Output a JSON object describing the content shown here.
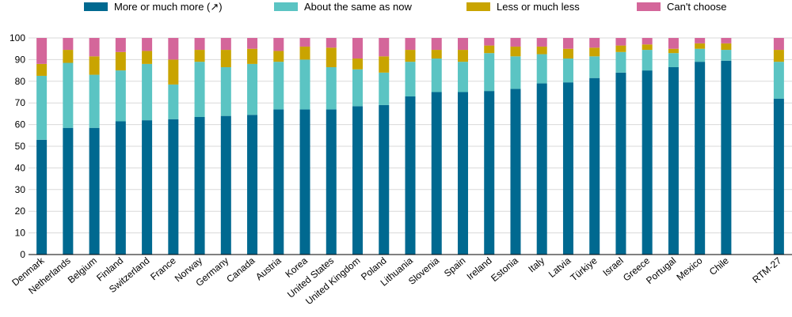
{
  "chart_data": {
    "type": "bar",
    "stacked": true,
    "title": "",
    "xlabel": "",
    "ylabel": "",
    "ylim": [
      0,
      100
    ],
    "yticks": [
      0,
      10,
      20,
      30,
      40,
      50,
      60,
      70,
      80,
      90,
      100
    ],
    "grid": true,
    "legend_position": "top",
    "categories": [
      "Denmark",
      "Netherlands",
      "Belgium",
      "Finland",
      "Switzerland",
      "France",
      "Norway",
      "Germany",
      "Canada",
      "Austria",
      "Korea",
      "United States",
      "United Kingdom",
      "Poland",
      "Lithuania",
      "Slovenia",
      "Spain",
      "Ireland",
      "Estonia",
      "Italy",
      "Latvia",
      "Türkiye",
      "Israel",
      "Greece",
      "Portugal",
      "Mexico",
      "Chile",
      "",
      "RTM-27"
    ],
    "series": [
      {
        "name": "More or much more (↗)",
        "color": "#006990",
        "values": [
          53,
          58.5,
          58.5,
          61.5,
          62,
          62.5,
          63.5,
          64,
          64.5,
          67,
          67,
          67,
          68.5,
          69,
          73,
          75,
          75,
          75.5,
          76.5,
          79,
          79.5,
          81.5,
          84,
          85,
          86.5,
          89,
          89.5,
          null,
          72
        ]
      },
      {
        "name": "About the same as now",
        "color": "#5bc4c3",
        "values": [
          29.5,
          30,
          24.5,
          23.5,
          26,
          16,
          25.5,
          22.5,
          23.5,
          22,
          23,
          19.5,
          17,
          15,
          16,
          15.5,
          14,
          17.5,
          15,
          13.5,
          11,
          10,
          9.5,
          9.5,
          6.5,
          6,
          5,
          null,
          17
        ]
      },
      {
        "name": "Less or much less",
        "color": "#c9a400",
        "values": [
          5.5,
          6,
          8.5,
          8.5,
          6,
          11.5,
          5.5,
          8,
          7,
          5,
          6,
          9,
          5,
          7.5,
          5.5,
          4,
          5.5,
          3.5,
          4.5,
          3.5,
          4.5,
          4,
          3,
          2.5,
          2,
          2.5,
          3,
          null,
          5.5
        ]
      },
      {
        "name": "Can't choose",
        "color": "#d4669a",
        "values": [
          12,
          5.5,
          8.5,
          6.5,
          6,
          10,
          5.5,
          5.5,
          5,
          6,
          4,
          4.5,
          9.5,
          8.5,
          5.5,
          5.5,
          5.5,
          3.5,
          4,
          4,
          5,
          4.5,
          3.5,
          3,
          5,
          2.5,
          2.5,
          null,
          5.5
        ]
      }
    ]
  }
}
